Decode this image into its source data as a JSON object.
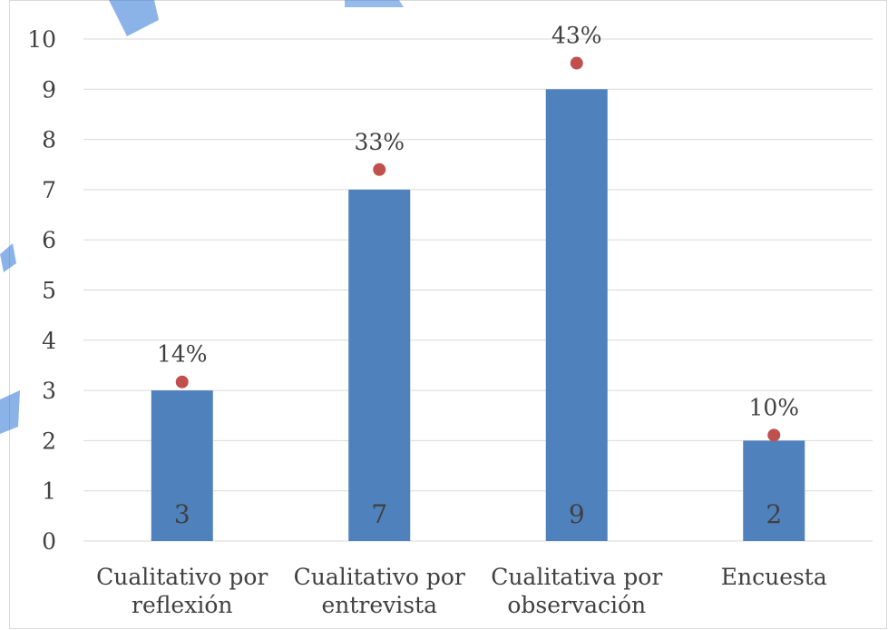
{
  "chart_data": {
    "type": "bar",
    "title": "",
    "xlabel": "",
    "ylabel": "",
    "ylim": [
      0,
      10
    ],
    "yticks": [
      0,
      1,
      2,
      3,
      4,
      5,
      6,
      7,
      8,
      9,
      10
    ],
    "categories": [
      [
        "Cualitativo por",
        "reflexión"
      ],
      [
        "Cualitativo por",
        "entrevista"
      ],
      [
        "Cualitativa por",
        "observación"
      ],
      [
        "Encuesta"
      ]
    ],
    "series": [
      {
        "values": [
          3,
          7,
          9,
          2
        ],
        "value_labels": [
          "3",
          "7",
          "9",
          "2"
        ],
        "color": "#4f81bd"
      },
      {
        "type": "scatter",
        "values": [
          3.17,
          7.4,
          9.52,
          2.11
        ],
        "value_labels": [
          "14%",
          "33%",
          "43%",
          "10%"
        ],
        "color": "#c0504d"
      }
    ],
    "grid": true,
    "legend": "none"
  },
  "colors": {
    "bar": "#4f81bd",
    "marker": "#c0504d",
    "grid": "#d9d9d9",
    "text": "#404040",
    "watermark": "#2e75d6"
  }
}
